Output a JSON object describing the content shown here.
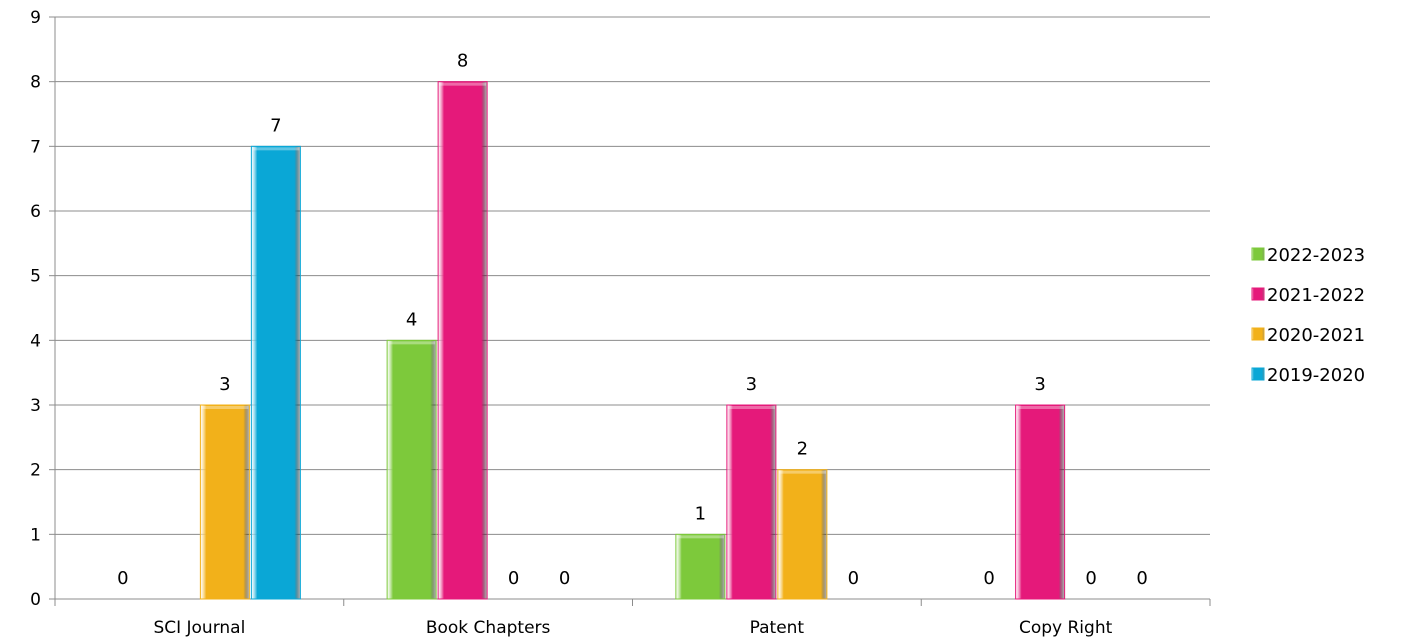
{
  "chart_data": {
    "type": "bar",
    "categories": [
      "SCI Journal",
      "Book Chapters",
      "Patent",
      "Copy Right"
    ],
    "series": [
      {
        "name": "2022-2023",
        "values": [
          0,
          4,
          1,
          0
        ],
        "color": "#7dc93b"
      },
      {
        "name": "2021-2022",
        "values": [
          null,
          8,
          3,
          3
        ],
        "color": "#e5197a"
      },
      {
        "name": "2020-2021",
        "values": [
          3,
          0,
          2,
          0
        ],
        "color": "#f2b11a"
      },
      {
        "name": "2019-2020",
        "values": [
          7,
          0,
          0,
          0
        ],
        "color": "#0aa7d6"
      }
    ],
    "ylim": [
      0,
      9
    ],
    "yticks": [
      0,
      1,
      2,
      3,
      4,
      5,
      6,
      7,
      8,
      9
    ],
    "grid": true,
    "legend": "right",
    "title": "",
    "xlabel": "",
    "ylabel": ""
  }
}
